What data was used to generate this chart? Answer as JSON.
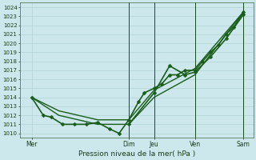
{
  "xlabel": "Pression niveau de la mer( hPa )",
  "background_color": "#cce8ec",
  "grid_color": "#aacccc",
  "line_color": "#1a5c1a",
  "ylim": [
    1009.5,
    1024.5
  ],
  "yticks": [
    1010,
    1011,
    1012,
    1013,
    1014,
    1015,
    1016,
    1017,
    1018,
    1019,
    1020,
    1021,
    1022,
    1023,
    1024
  ],
  "xlim": [
    0,
    6.0
  ],
  "x_day_labels": [
    "Mer",
    "Dim",
    "Jeu",
    "Ven",
    "Sam"
  ],
  "x_day_positions": [
    0.3,
    2.8,
    3.45,
    4.5,
    5.75
  ],
  "vline_positions": [
    2.8,
    3.45,
    4.5,
    5.75
  ],
  "series": [
    {
      "x": [
        0.3,
        0.6,
        0.8,
        1.1,
        1.4,
        1.7,
        2.0,
        2.3,
        2.55,
        2.8,
        3.05,
        3.2,
        3.45,
        3.65,
        3.85,
        4.05,
        4.25,
        4.5,
        4.7,
        4.9,
        5.1,
        5.3,
        5.5,
        5.75
      ],
      "y": [
        1014,
        1012,
        1011.8,
        1011,
        1011,
        1011,
        1011.2,
        1010.5,
        1010,
        1011.5,
        1013.5,
        1014.5,
        1015,
        1015.5,
        1016.5,
        1016.5,
        1017,
        1017,
        1018,
        1019,
        1019.8,
        1021,
        1021.8,
        1023.5
      ],
      "marker": "D",
      "markersize": 2.5,
      "linewidth": 1.2,
      "zorder": 4
    },
    {
      "x": [
        0.3,
        1.0,
        2.0,
        2.8,
        3.45,
        4.5,
        5.75
      ],
      "y": [
        1014,
        1012,
        1011,
        1011,
        1014,
        1016.5,
        1023.5
      ],
      "marker": null,
      "linewidth": 1.0,
      "zorder": 2
    },
    {
      "x": [
        0.3,
        1.0,
        2.0,
        2.8,
        3.45,
        4.5,
        5.75
      ],
      "y": [
        1014,
        1012.5,
        1011.5,
        1011.5,
        1014.8,
        1017.2,
        1023.5
      ],
      "marker": null,
      "linewidth": 1.0,
      "zorder": 2
    },
    {
      "x": [
        2.8,
        3.45,
        3.85,
        4.25,
        4.5,
        4.9,
        5.3,
        5.75
      ],
      "y": [
        1011,
        1014.5,
        1017.5,
        1016.5,
        1016.8,
        1018.5,
        1020.5,
        1023.2
      ],
      "marker": "D",
      "markersize": 2.5,
      "linewidth": 1.2,
      "zorder": 3
    }
  ]
}
